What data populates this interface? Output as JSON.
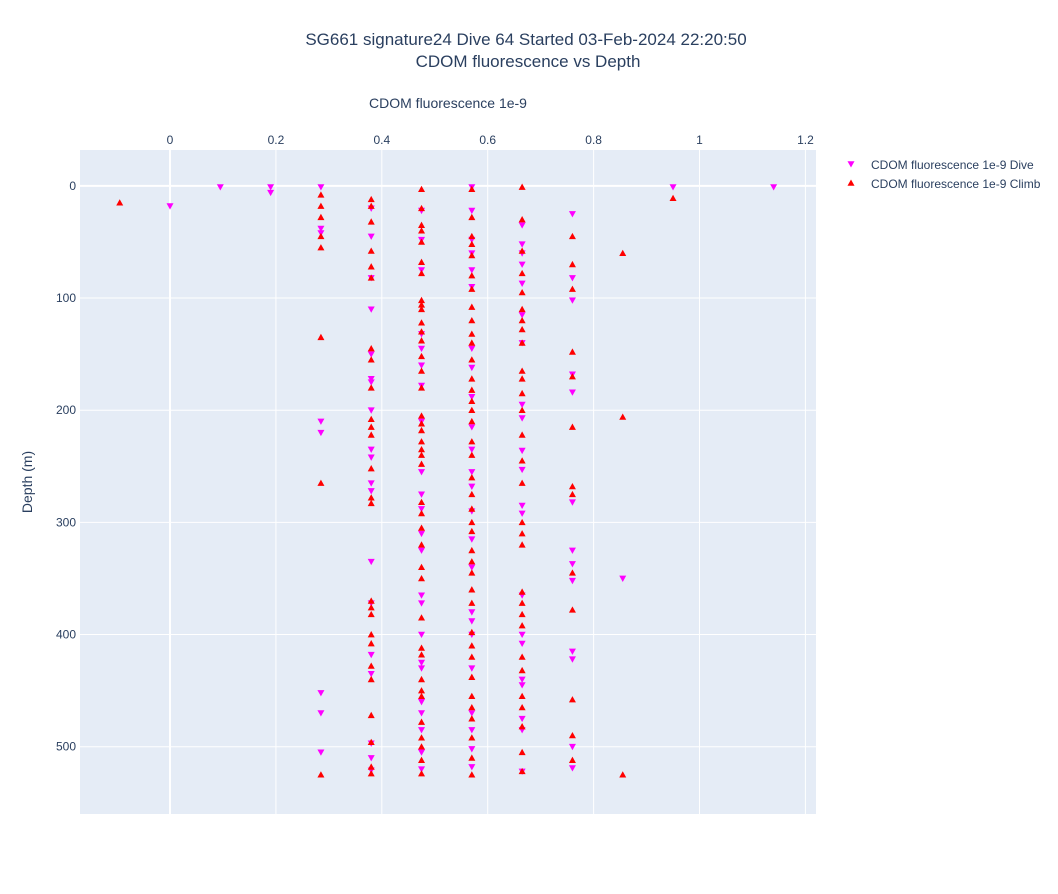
{
  "chart_data": {
    "type": "scatter",
    "title": "SG661 signature24 Dive 64 Started 03-Feb-2024 22:20:50",
    "subtitle": "CDOM fluorescence vs Depth",
    "xlabel": "CDOM fluorescence 1e-9",
    "ylabel": "Depth (m)",
    "xlim": [
      -0.17,
      1.22
    ],
    "ylim": [
      560,
      -32
    ],
    "x_axis_position": "top",
    "y_reversed": true,
    "grid": true,
    "legend_position": "top-right",
    "x_ticks": [
      {
        "value": 0,
        "label": "0"
      },
      {
        "value": 0.2,
        "label": "0.2"
      },
      {
        "value": 0.4,
        "label": "0.4"
      },
      {
        "value": 0.6,
        "label": "0.6"
      },
      {
        "value": 0.8,
        "label": "0.8"
      },
      {
        "value": 1.0,
        "label": "1"
      },
      {
        "value": 1.2,
        "label": "1.2"
      }
    ],
    "y_ticks": [
      {
        "value": 0,
        "label": "0"
      },
      {
        "value": 100,
        "label": "100"
      },
      {
        "value": 200,
        "label": "200"
      },
      {
        "value": 300,
        "label": "300"
      },
      {
        "value": 400,
        "label": "400"
      },
      {
        "value": 500,
        "label": "500"
      }
    ],
    "series": [
      {
        "name": "CDOM fluorescence 1e-9 Dive",
        "color": "#ff00ff",
        "marker": "triangle-down",
        "points": [
          [
            0.095,
            1
          ],
          [
            0.19,
            1
          ],
          [
            0.19,
            6
          ],
          [
            0.0,
            18
          ],
          [
            0.285,
            1
          ],
          [
            0.285,
            38
          ],
          [
            0.285,
            42
          ],
          [
            0.285,
            210
          ],
          [
            0.285,
            220
          ],
          [
            0.285,
            452
          ],
          [
            0.285,
            470
          ],
          [
            0.285,
            505
          ],
          [
            0.38,
            20
          ],
          [
            0.38,
            45
          ],
          [
            0.38,
            82
          ],
          [
            0.38,
            110
          ],
          [
            0.38,
            150
          ],
          [
            0.38,
            172
          ],
          [
            0.38,
            175
          ],
          [
            0.38,
            200
          ],
          [
            0.38,
            235
          ],
          [
            0.38,
            242
          ],
          [
            0.38,
            265
          ],
          [
            0.38,
            272
          ],
          [
            0.38,
            335
          ],
          [
            0.38,
            372
          ],
          [
            0.38,
            418
          ],
          [
            0.38,
            435
          ],
          [
            0.38,
            497
          ],
          [
            0.38,
            510
          ],
          [
            0.38,
            521
          ],
          [
            0.475,
            22
          ],
          [
            0.475,
            48
          ],
          [
            0.475,
            75
          ],
          [
            0.475,
            132
          ],
          [
            0.475,
            145
          ],
          [
            0.475,
            160
          ],
          [
            0.475,
            178
          ],
          [
            0.475,
            210
          ],
          [
            0.475,
            255
          ],
          [
            0.475,
            275
          ],
          [
            0.475,
            288
          ],
          [
            0.475,
            310
          ],
          [
            0.475,
            325
          ],
          [
            0.475,
            365
          ],
          [
            0.475,
            372
          ],
          [
            0.475,
            400
          ],
          [
            0.475,
            425
          ],
          [
            0.475,
            430
          ],
          [
            0.475,
            460
          ],
          [
            0.475,
            470
          ],
          [
            0.475,
            485
          ],
          [
            0.475,
            505
          ],
          [
            0.475,
            520
          ],
          [
            0.57,
            1
          ],
          [
            0.57,
            22
          ],
          [
            0.57,
            48
          ],
          [
            0.57,
            60
          ],
          [
            0.57,
            75
          ],
          [
            0.57,
            90
          ],
          [
            0.57,
            145
          ],
          [
            0.57,
            162
          ],
          [
            0.57,
            188
          ],
          [
            0.57,
            215
          ],
          [
            0.57,
            235
          ],
          [
            0.57,
            255
          ],
          [
            0.57,
            268
          ],
          [
            0.57,
            290
          ],
          [
            0.57,
            315
          ],
          [
            0.57,
            340
          ],
          [
            0.57,
            380
          ],
          [
            0.57,
            388
          ],
          [
            0.57,
            400
          ],
          [
            0.57,
            430
          ],
          [
            0.57,
            470
          ],
          [
            0.57,
            485
          ],
          [
            0.57,
            502
          ],
          [
            0.57,
            518
          ],
          [
            0.665,
            35
          ],
          [
            0.665,
            52
          ],
          [
            0.665,
            60
          ],
          [
            0.665,
            70
          ],
          [
            0.665,
            87
          ],
          [
            0.665,
            115
          ],
          [
            0.665,
            140
          ],
          [
            0.665,
            195
          ],
          [
            0.665,
            207
          ],
          [
            0.665,
            236
          ],
          [
            0.665,
            253
          ],
          [
            0.665,
            285
          ],
          [
            0.665,
            292
          ],
          [
            0.665,
            365
          ],
          [
            0.665,
            400
          ],
          [
            0.665,
            408
          ],
          [
            0.665,
            440
          ],
          [
            0.665,
            445
          ],
          [
            0.665,
            475
          ],
          [
            0.665,
            485
          ],
          [
            0.665,
            522
          ],
          [
            0.76,
            25
          ],
          [
            0.76,
            82
          ],
          [
            0.76,
            102
          ],
          [
            0.76,
            168
          ],
          [
            0.76,
            184
          ],
          [
            0.76,
            282
          ],
          [
            0.76,
            325
          ],
          [
            0.76,
            337
          ],
          [
            0.76,
            352
          ],
          [
            0.76,
            415
          ],
          [
            0.76,
            422
          ],
          [
            0.76,
            500
          ],
          [
            0.76,
            519
          ],
          [
            0.855,
            350
          ],
          [
            0.95,
            1
          ],
          [
            1.14,
            1
          ]
        ]
      },
      {
        "name": "CDOM fluorescence 1e-9 Climb",
        "color": "#ff0000",
        "marker": "triangle-up",
        "points": [
          [
            -0.095,
            15
          ],
          [
            0.285,
            8
          ],
          [
            0.285,
            18
          ],
          [
            0.285,
            28
          ],
          [
            0.285,
            45
          ],
          [
            0.285,
            55
          ],
          [
            0.285,
            135
          ],
          [
            0.285,
            265
          ],
          [
            0.285,
            525
          ],
          [
            0.38,
            12
          ],
          [
            0.38,
            18
          ],
          [
            0.38,
            32
          ],
          [
            0.38,
            58
          ],
          [
            0.38,
            72
          ],
          [
            0.38,
            82
          ],
          [
            0.38,
            145
          ],
          [
            0.38,
            155
          ],
          [
            0.38,
            180
          ],
          [
            0.38,
            208
          ],
          [
            0.38,
            215
          ],
          [
            0.38,
            222
          ],
          [
            0.38,
            252
          ],
          [
            0.38,
            278
          ],
          [
            0.38,
            283
          ],
          [
            0.38,
            370
          ],
          [
            0.38,
            376
          ],
          [
            0.38,
            382
          ],
          [
            0.38,
            400
          ],
          [
            0.38,
            408
          ],
          [
            0.38,
            428
          ],
          [
            0.38,
            440
          ],
          [
            0.38,
            472
          ],
          [
            0.38,
            496
          ],
          [
            0.38,
            518
          ],
          [
            0.38,
            524
          ],
          [
            0.475,
            3
          ],
          [
            0.475,
            20
          ],
          [
            0.475,
            35
          ],
          [
            0.475,
            40
          ],
          [
            0.475,
            50
          ],
          [
            0.475,
            68
          ],
          [
            0.475,
            78
          ],
          [
            0.475,
            102
          ],
          [
            0.475,
            106
          ],
          [
            0.475,
            110
          ],
          [
            0.475,
            122
          ],
          [
            0.475,
            130
          ],
          [
            0.475,
            138
          ],
          [
            0.475,
            152
          ],
          [
            0.475,
            165
          ],
          [
            0.475,
            180
          ],
          [
            0.475,
            205
          ],
          [
            0.475,
            212
          ],
          [
            0.475,
            218
          ],
          [
            0.475,
            228
          ],
          [
            0.475,
            235
          ],
          [
            0.475,
            240
          ],
          [
            0.475,
            248
          ],
          [
            0.475,
            282
          ],
          [
            0.475,
            292
          ],
          [
            0.475,
            305
          ],
          [
            0.475,
            320
          ],
          [
            0.475,
            340
          ],
          [
            0.475,
            350
          ],
          [
            0.475,
            385
          ],
          [
            0.475,
            412
          ],
          [
            0.475,
            418
          ],
          [
            0.475,
            440
          ],
          [
            0.475,
            450
          ],
          [
            0.475,
            455
          ],
          [
            0.475,
            478
          ],
          [
            0.475,
            492
          ],
          [
            0.475,
            500
          ],
          [
            0.475,
            512
          ],
          [
            0.475,
            524
          ],
          [
            0.57,
            3
          ],
          [
            0.57,
            28
          ],
          [
            0.57,
            45
          ],
          [
            0.57,
            52
          ],
          [
            0.57,
            62
          ],
          [
            0.57,
            80
          ],
          [
            0.57,
            92
          ],
          [
            0.57,
            108
          ],
          [
            0.57,
            120
          ],
          [
            0.57,
            132
          ],
          [
            0.57,
            140
          ],
          [
            0.57,
            155
          ],
          [
            0.57,
            172
          ],
          [
            0.57,
            182
          ],
          [
            0.57,
            192
          ],
          [
            0.57,
            200
          ],
          [
            0.57,
            210
          ],
          [
            0.57,
            228
          ],
          [
            0.57,
            240
          ],
          [
            0.57,
            260
          ],
          [
            0.57,
            275
          ],
          [
            0.57,
            288
          ],
          [
            0.57,
            300
          ],
          [
            0.57,
            308
          ],
          [
            0.57,
            325
          ],
          [
            0.57,
            335
          ],
          [
            0.57,
            345
          ],
          [
            0.57,
            360
          ],
          [
            0.57,
            372
          ],
          [
            0.57,
            398
          ],
          [
            0.57,
            410
          ],
          [
            0.57,
            420
          ],
          [
            0.57,
            438
          ],
          [
            0.57,
            455
          ],
          [
            0.57,
            465
          ],
          [
            0.57,
            475
          ],
          [
            0.57,
            492
          ],
          [
            0.57,
            510
          ],
          [
            0.57,
            525
          ],
          [
            0.665,
            1
          ],
          [
            0.665,
            30
          ],
          [
            0.665,
            58
          ],
          [
            0.665,
            78
          ],
          [
            0.665,
            95
          ],
          [
            0.665,
            110
          ],
          [
            0.665,
            120
          ],
          [
            0.665,
            128
          ],
          [
            0.665,
            140
          ],
          [
            0.665,
            165
          ],
          [
            0.665,
            172
          ],
          [
            0.665,
            185
          ],
          [
            0.665,
            200
          ],
          [
            0.665,
            222
          ],
          [
            0.665,
            245
          ],
          [
            0.665,
            265
          ],
          [
            0.665,
            300
          ],
          [
            0.665,
            310
          ],
          [
            0.665,
            320
          ],
          [
            0.665,
            362
          ],
          [
            0.665,
            372
          ],
          [
            0.665,
            382
          ],
          [
            0.665,
            392
          ],
          [
            0.665,
            420
          ],
          [
            0.665,
            432
          ],
          [
            0.665,
            455
          ],
          [
            0.665,
            465
          ],
          [
            0.665,
            482
          ],
          [
            0.665,
            505
          ],
          [
            0.665,
            522
          ],
          [
            0.76,
            45
          ],
          [
            0.76,
            70
          ],
          [
            0.76,
            92
          ],
          [
            0.76,
            148
          ],
          [
            0.76,
            170
          ],
          [
            0.76,
            215
          ],
          [
            0.76,
            268
          ],
          [
            0.76,
            275
          ],
          [
            0.76,
            345
          ],
          [
            0.76,
            378
          ],
          [
            0.76,
            458
          ],
          [
            0.76,
            490
          ],
          [
            0.76,
            512
          ],
          [
            0.855,
            60
          ],
          [
            0.855,
            206
          ],
          [
            0.855,
            525
          ],
          [
            0.95,
            11
          ]
        ]
      }
    ]
  }
}
